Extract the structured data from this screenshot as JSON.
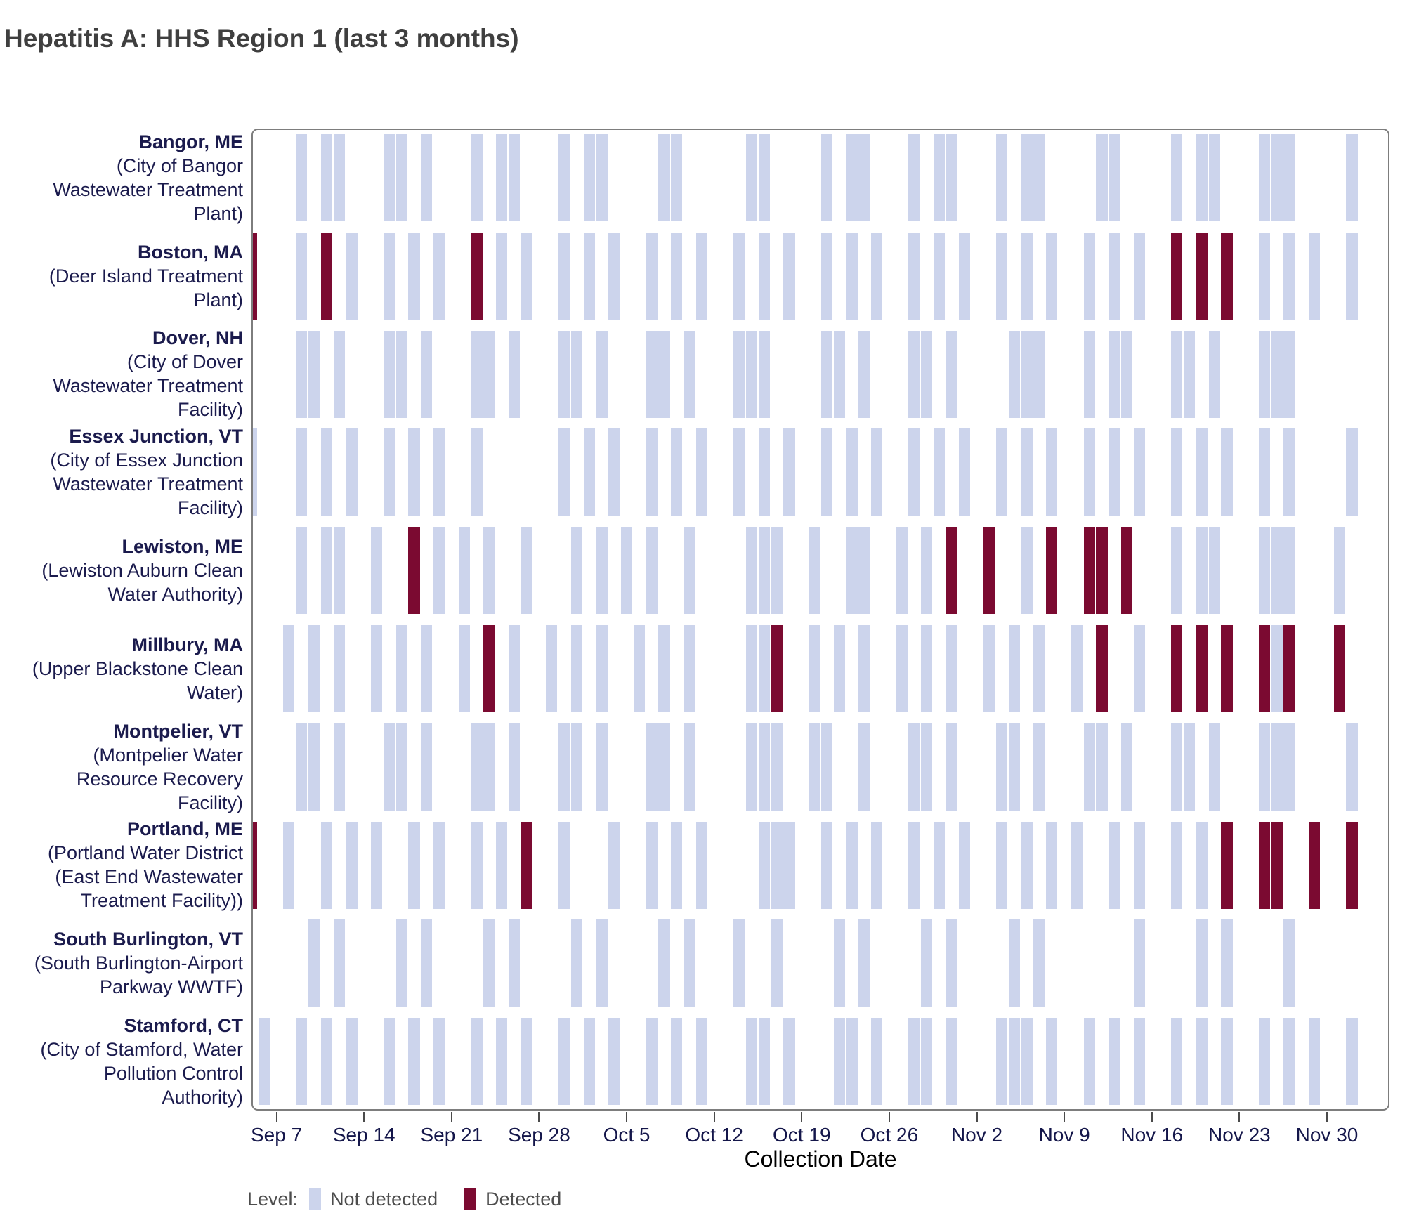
{
  "title": "Hepatitis A: HHS Region 1 (last 3 months)",
  "axis": {
    "xlabel": "Collection Date",
    "ticks": [
      "Sep 7",
      "Sep 14",
      "Sep 21",
      "Sep 28",
      "Oct 5",
      "Oct 12",
      "Oct 19",
      "Oct 26",
      "Nov 2",
      "Nov 9",
      "Nov 16",
      "Nov 23",
      "Nov 30"
    ]
  },
  "legend": {
    "label": "Level:",
    "items": [
      {
        "key": "not_detected",
        "label": "Not detected",
        "color": "#ccd4ec"
      },
      {
        "key": "detected",
        "label": "Detected",
        "color": "#7b0a31"
      }
    ]
  },
  "chart_data": {
    "type": "heatmap",
    "title": "Hepatitis A: HHS Region 1 (last 3 months)",
    "xlabel": "Collection Date",
    "x_range": [
      "Sep 5",
      "Dec 5"
    ],
    "grid": false,
    "legend_position": "bottom",
    "status_levels": [
      "Not detected",
      "Detected"
    ],
    "sites": [
      {
        "city": "Bangor, ME",
        "facility_lines": [
          "(City of Bangor",
          "Wastewater Treatment",
          "Plant)"
        ],
        "not_detected": [
          "Sep 9",
          "Sep 11",
          "Sep 12",
          "Sep 16",
          "Sep 17",
          "Sep 19",
          "Sep 23",
          "Sep 25",
          "Sep 26",
          "Sep 30",
          "Oct 2",
          "Oct 3",
          "Oct 8",
          "Oct 9",
          "Oct 15",
          "Oct 16",
          "Oct 21",
          "Oct 23",
          "Oct 24",
          "Oct 28",
          "Oct 30",
          "Oct 31",
          "Nov 4",
          "Nov 6",
          "Nov 7",
          "Nov 12",
          "Nov 13",
          "Nov 18",
          "Nov 20",
          "Nov 21",
          "Nov 25",
          "Nov 26",
          "Nov 27",
          "Dec 2"
        ],
        "detected": []
      },
      {
        "city": "Boston, MA",
        "facility_lines": [
          "(Deer Island Treatment",
          "Plant)"
        ],
        "not_detected": [
          "Sep 9",
          "Sep 13",
          "Sep 16",
          "Sep 18",
          "Sep 20",
          "Sep 25",
          "Sep 27",
          "Sep 30",
          "Oct 2",
          "Oct 4",
          "Oct 7",
          "Oct 9",
          "Oct 11",
          "Oct 14",
          "Oct 16",
          "Oct 18",
          "Oct 21",
          "Oct 23",
          "Oct 25",
          "Oct 28",
          "Oct 30",
          "Nov 1",
          "Nov 4",
          "Nov 6",
          "Nov 8",
          "Nov 11",
          "Nov 13",
          "Nov 15",
          "Nov 25",
          "Nov 27",
          "Nov 29",
          "Dec 2"
        ],
        "detected": [
          "Sep 5",
          "Sep 11",
          "Sep 23",
          "Nov 18",
          "Nov 20",
          "Nov 22"
        ]
      },
      {
        "city": "Dover, NH",
        "facility_lines": [
          "(City of Dover",
          "Wastewater Treatment",
          "Facility)"
        ],
        "not_detected": [
          "Sep 9",
          "Sep 10",
          "Sep 12",
          "Sep 16",
          "Sep 17",
          "Sep 19",
          "Sep 23",
          "Sep 24",
          "Sep 26",
          "Sep 30",
          "Oct 1",
          "Oct 3",
          "Oct 7",
          "Oct 8",
          "Oct 10",
          "Oct 14",
          "Oct 15",
          "Oct 16",
          "Oct 21",
          "Oct 22",
          "Oct 24",
          "Oct 28",
          "Oct 29",
          "Oct 31",
          "Nov 5",
          "Nov 6",
          "Nov 7",
          "Nov 11",
          "Nov 13",
          "Nov 14",
          "Nov 18",
          "Nov 19",
          "Nov 21",
          "Nov 25",
          "Nov 26",
          "Nov 27"
        ],
        "detected": []
      },
      {
        "city": "Essex Junction, VT",
        "facility_lines": [
          "(City of Essex Junction",
          "Wastewater Treatment",
          "Facility)"
        ],
        "not_detected": [
          "Sep 5",
          "Sep 9",
          "Sep 11",
          "Sep 13",
          "Sep 16",
          "Sep 18",
          "Sep 20",
          "Sep 23",
          "Sep 30",
          "Oct 2",
          "Oct 4",
          "Oct 7",
          "Oct 9",
          "Oct 11",
          "Oct 14",
          "Oct 16",
          "Oct 18",
          "Oct 21",
          "Oct 23",
          "Oct 25",
          "Oct 28",
          "Oct 30",
          "Nov 1",
          "Nov 4",
          "Nov 6",
          "Nov 8",
          "Nov 11",
          "Nov 13",
          "Nov 15",
          "Nov 18",
          "Nov 20",
          "Nov 22",
          "Nov 25",
          "Nov 27",
          "Dec 2"
        ],
        "detected": []
      },
      {
        "city": "Lewiston, ME",
        "facility_lines": [
          "(Lewiston Auburn Clean",
          "Water Authority)"
        ],
        "not_detected": [
          "Sep 9",
          "Sep 11",
          "Sep 12",
          "Sep 15",
          "Sep 20",
          "Sep 22",
          "Sep 24",
          "Sep 27",
          "Oct 1",
          "Oct 3",
          "Oct 5",
          "Oct 7",
          "Oct 10",
          "Oct 15",
          "Oct 16",
          "Oct 17",
          "Oct 20",
          "Oct 23",
          "Oct 24",
          "Oct 27",
          "Oct 29",
          "Nov 6",
          "Nov 18",
          "Nov 20",
          "Nov 21",
          "Nov 25",
          "Nov 26",
          "Nov 27",
          "Dec 1"
        ],
        "detected": [
          "Sep 18",
          "Oct 31",
          "Nov 3",
          "Nov 8",
          "Nov 11",
          "Nov 12",
          "Nov 14"
        ]
      },
      {
        "city": "Millbury, MA",
        "facility_lines": [
          "(Upper Blackstone Clean",
          "Water)"
        ],
        "not_detected": [
          "Sep 8",
          "Sep 10",
          "Sep 12",
          "Sep 15",
          "Sep 17",
          "Sep 19",
          "Sep 22",
          "Sep 26",
          "Sep 29",
          "Oct 1",
          "Oct 3",
          "Oct 6",
          "Oct 8",
          "Oct 10",
          "Oct 15",
          "Oct 16",
          "Oct 20",
          "Oct 22",
          "Oct 24",
          "Oct 27",
          "Oct 29",
          "Oct 31",
          "Nov 3",
          "Nov 5",
          "Nov 7",
          "Nov 10",
          "Nov 15",
          "Nov 26"
        ],
        "detected": [
          "Sep 24",
          "Oct 17",
          "Nov 12",
          "Nov 18",
          "Nov 20",
          "Nov 22",
          "Nov 25",
          "Nov 27",
          "Dec 1"
        ]
      },
      {
        "city": "Montpelier, VT",
        "facility_lines": [
          "(Montpelier Water",
          "Resource Recovery",
          "Facility)"
        ],
        "not_detected": [
          "Sep 9",
          "Sep 10",
          "Sep 12",
          "Sep 16",
          "Sep 17",
          "Sep 19",
          "Sep 23",
          "Sep 24",
          "Sep 26",
          "Sep 30",
          "Oct 1",
          "Oct 3",
          "Oct 7",
          "Oct 8",
          "Oct 10",
          "Oct 15",
          "Oct 16",
          "Oct 17",
          "Oct 20",
          "Oct 21",
          "Oct 24",
          "Oct 28",
          "Oct 29",
          "Oct 31",
          "Nov 4",
          "Nov 5",
          "Nov 7",
          "Nov 11",
          "Nov 12",
          "Nov 14",
          "Nov 18",
          "Nov 19",
          "Nov 21",
          "Nov 25",
          "Nov 26",
          "Nov 27",
          "Dec 2"
        ],
        "detected": []
      },
      {
        "city": "Portland, ME",
        "facility_lines": [
          "(Portland Water District",
          "(East End Wastewater",
          "Treatment Facility))"
        ],
        "not_detected": [
          "Sep 8",
          "Sep 11",
          "Sep 13",
          "Sep 15",
          "Sep 18",
          "Sep 20",
          "Sep 23",
          "Sep 25",
          "Sep 30",
          "Oct 4",
          "Oct 7",
          "Oct 9",
          "Oct 11",
          "Oct 16",
          "Oct 17",
          "Oct 18",
          "Oct 21",
          "Oct 23",
          "Oct 25",
          "Oct 28",
          "Oct 30",
          "Nov 1",
          "Nov 4",
          "Nov 6",
          "Nov 8",
          "Nov 10",
          "Nov 13",
          "Nov 15",
          "Nov 18",
          "Nov 20"
        ],
        "detected": [
          "Sep 5",
          "Sep 27",
          "Nov 22",
          "Nov 25",
          "Nov 26",
          "Nov 29",
          "Dec 2"
        ]
      },
      {
        "city": "South Burlington, VT",
        "facility_lines": [
          "(South Burlington-Airport",
          "Parkway WWTF)"
        ],
        "not_detected": [
          "Sep 10",
          "Sep 12",
          "Sep 17",
          "Sep 19",
          "Sep 24",
          "Sep 26",
          "Oct 1",
          "Oct 3",
          "Oct 8",
          "Oct 10",
          "Oct 14",
          "Oct 17",
          "Oct 22",
          "Oct 24",
          "Oct 29",
          "Oct 31",
          "Nov 5",
          "Nov 7",
          "Nov 15",
          "Nov 20",
          "Nov 22",
          "Nov 27"
        ],
        "detected": []
      },
      {
        "city": "Stamford, CT",
        "facility_lines": [
          "(City of Stamford, Water",
          "Pollution Control",
          "Authority)"
        ],
        "not_detected": [
          "Sep 6",
          "Sep 9",
          "Sep 11",
          "Sep 13",
          "Sep 16",
          "Sep 18",
          "Sep 20",
          "Sep 23",
          "Sep 25",
          "Sep 27",
          "Sep 30",
          "Oct 2",
          "Oct 4",
          "Oct 7",
          "Oct 9",
          "Oct 11",
          "Oct 15",
          "Oct 16",
          "Oct 18",
          "Oct 22",
          "Oct 23",
          "Oct 25",
          "Oct 28",
          "Oct 29",
          "Oct 31",
          "Nov 4",
          "Nov 5",
          "Nov 6",
          "Nov 8",
          "Nov 11",
          "Nov 13",
          "Nov 15",
          "Nov 18",
          "Nov 20",
          "Nov 22",
          "Nov 25",
          "Nov 27",
          "Nov 29",
          "Dec 2"
        ],
        "detected": []
      }
    ]
  }
}
